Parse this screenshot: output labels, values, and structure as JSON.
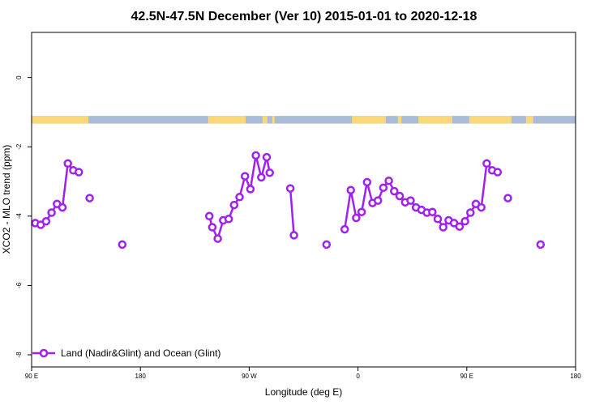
{
  "chart_data": {
    "type": "line",
    "title": "42.5N-47.5N December (Ver 10)   2015-01-01 to 2020-12-18",
    "xlabel": "Longitude (deg E)",
    "ylabel": "XCO2 - MLO trend (ppm)",
    "xlim": [
      90,
      540
    ],
    "ylim": [
      -8.35,
      1.3
    ],
    "x_ticks": [
      {
        "value": 90,
        "label": "90 E"
      },
      {
        "value": 180,
        "label": "180"
      },
      {
        "value": 270,
        "label": "90 W"
      },
      {
        "value": 360,
        "label": "0"
      },
      {
        "value": 450,
        "label": "90 E"
      },
      {
        "value": 540,
        "label": "180"
      }
    ],
    "y_ticks": [
      {
        "value": 0,
        "label": "0"
      },
      {
        "value": -2,
        "label": "-2"
      },
      {
        "value": -4,
        "label": "-4"
      },
      {
        "value": -6,
        "label": "-6"
      },
      {
        "value": -8,
        "label": "-8"
      }
    ],
    "legend": {
      "position": "bottom-left"
    },
    "colors": {
      "series": "#a020f0",
      "land": "#f8d878",
      "ocean": "#a8bcd8"
    },
    "land_ocean_strip": {
      "y_center": -1.22,
      "thickness": 0.22,
      "land_ranges": [
        [
          90,
          137
        ],
        [
          236,
          267
        ],
        [
          281,
          285
        ],
        [
          289,
          291
        ],
        [
          355,
          383
        ],
        [
          393,
          396
        ],
        [
          410,
          438
        ],
        [
          452,
          487
        ],
        [
          499,
          505
        ]
      ]
    },
    "series": [
      {
        "name": "Land (Nadir&Glint) and Ocean (Glint)",
        "segments": [
          [
            [
              93,
              -4.2
            ],
            [
              97.5,
              -4.25
            ],
            [
              102,
              -4.15
            ],
            [
              106.5,
              -3.9
            ],
            [
              111,
              -3.65
            ],
            [
              115.5,
              -3.75
            ],
            [
              120,
              -2.48
            ],
            [
              124.5,
              -2.68
            ],
            [
              129,
              -2.73
            ]
          ],
          [
            [
              138,
              -3.48
            ]
          ],
          [
            [
              165,
              -4.82
            ]
          ],
          [
            [
              237,
              -4.0
            ],
            [
              239.5,
              -4.32
            ],
            [
              244,
              -4.65
            ],
            [
              248.5,
              -4.12
            ],
            [
              253,
              -4.08
            ],
            [
              257.5,
              -3.68
            ],
            [
              262,
              -3.45
            ],
            [
              266.5,
              -2.85
            ],
            [
              271,
              -3.22
            ],
            [
              275.5,
              -2.25
            ],
            [
              280,
              -2.88
            ],
            [
              284.5,
              -2.3
            ],
            [
              287,
              -2.75
            ]
          ],
          [
            [
              304,
              -3.2
            ],
            [
              307,
              -4.55
            ]
          ],
          [
            [
              334,
              -4.82
            ]
          ],
          [
            [
              349,
              -4.38
            ],
            [
              354,
              -3.25
            ],
            [
              358.5,
              -4.05
            ],
            [
              363,
              -3.88
            ],
            [
              367.5,
              -3.02
            ],
            [
              372,
              -3.62
            ],
            [
              376.5,
              -3.55
            ],
            [
              381,
              -3.18
            ],
            [
              385.5,
              -2.98
            ],
            [
              390,
              -3.28
            ],
            [
              394.5,
              -3.42
            ],
            [
              399,
              -3.6
            ],
            [
              403.5,
              -3.55
            ],
            [
              408,
              -3.75
            ],
            [
              412.5,
              -3.82
            ],
            [
              417,
              -3.9
            ],
            [
              421.5,
              -3.88
            ],
            [
              426,
              -4.08
            ],
            [
              430.5,
              -4.32
            ],
            [
              435,
              -4.12
            ],
            [
              439.5,
              -4.2
            ],
            [
              444,
              -4.3
            ],
            [
              448.5,
              -4.15
            ],
            [
              453,
              -3.9
            ],
            [
              457.5,
              -3.65
            ],
            [
              462,
              -3.75
            ],
            [
              466.5,
              -2.48
            ],
            [
              471,
              -2.68
            ],
            [
              475.5,
              -2.73
            ]
          ],
          [
            [
              484,
              -3.48
            ]
          ],
          [
            [
              511,
              -4.82
            ]
          ]
        ]
      }
    ]
  }
}
